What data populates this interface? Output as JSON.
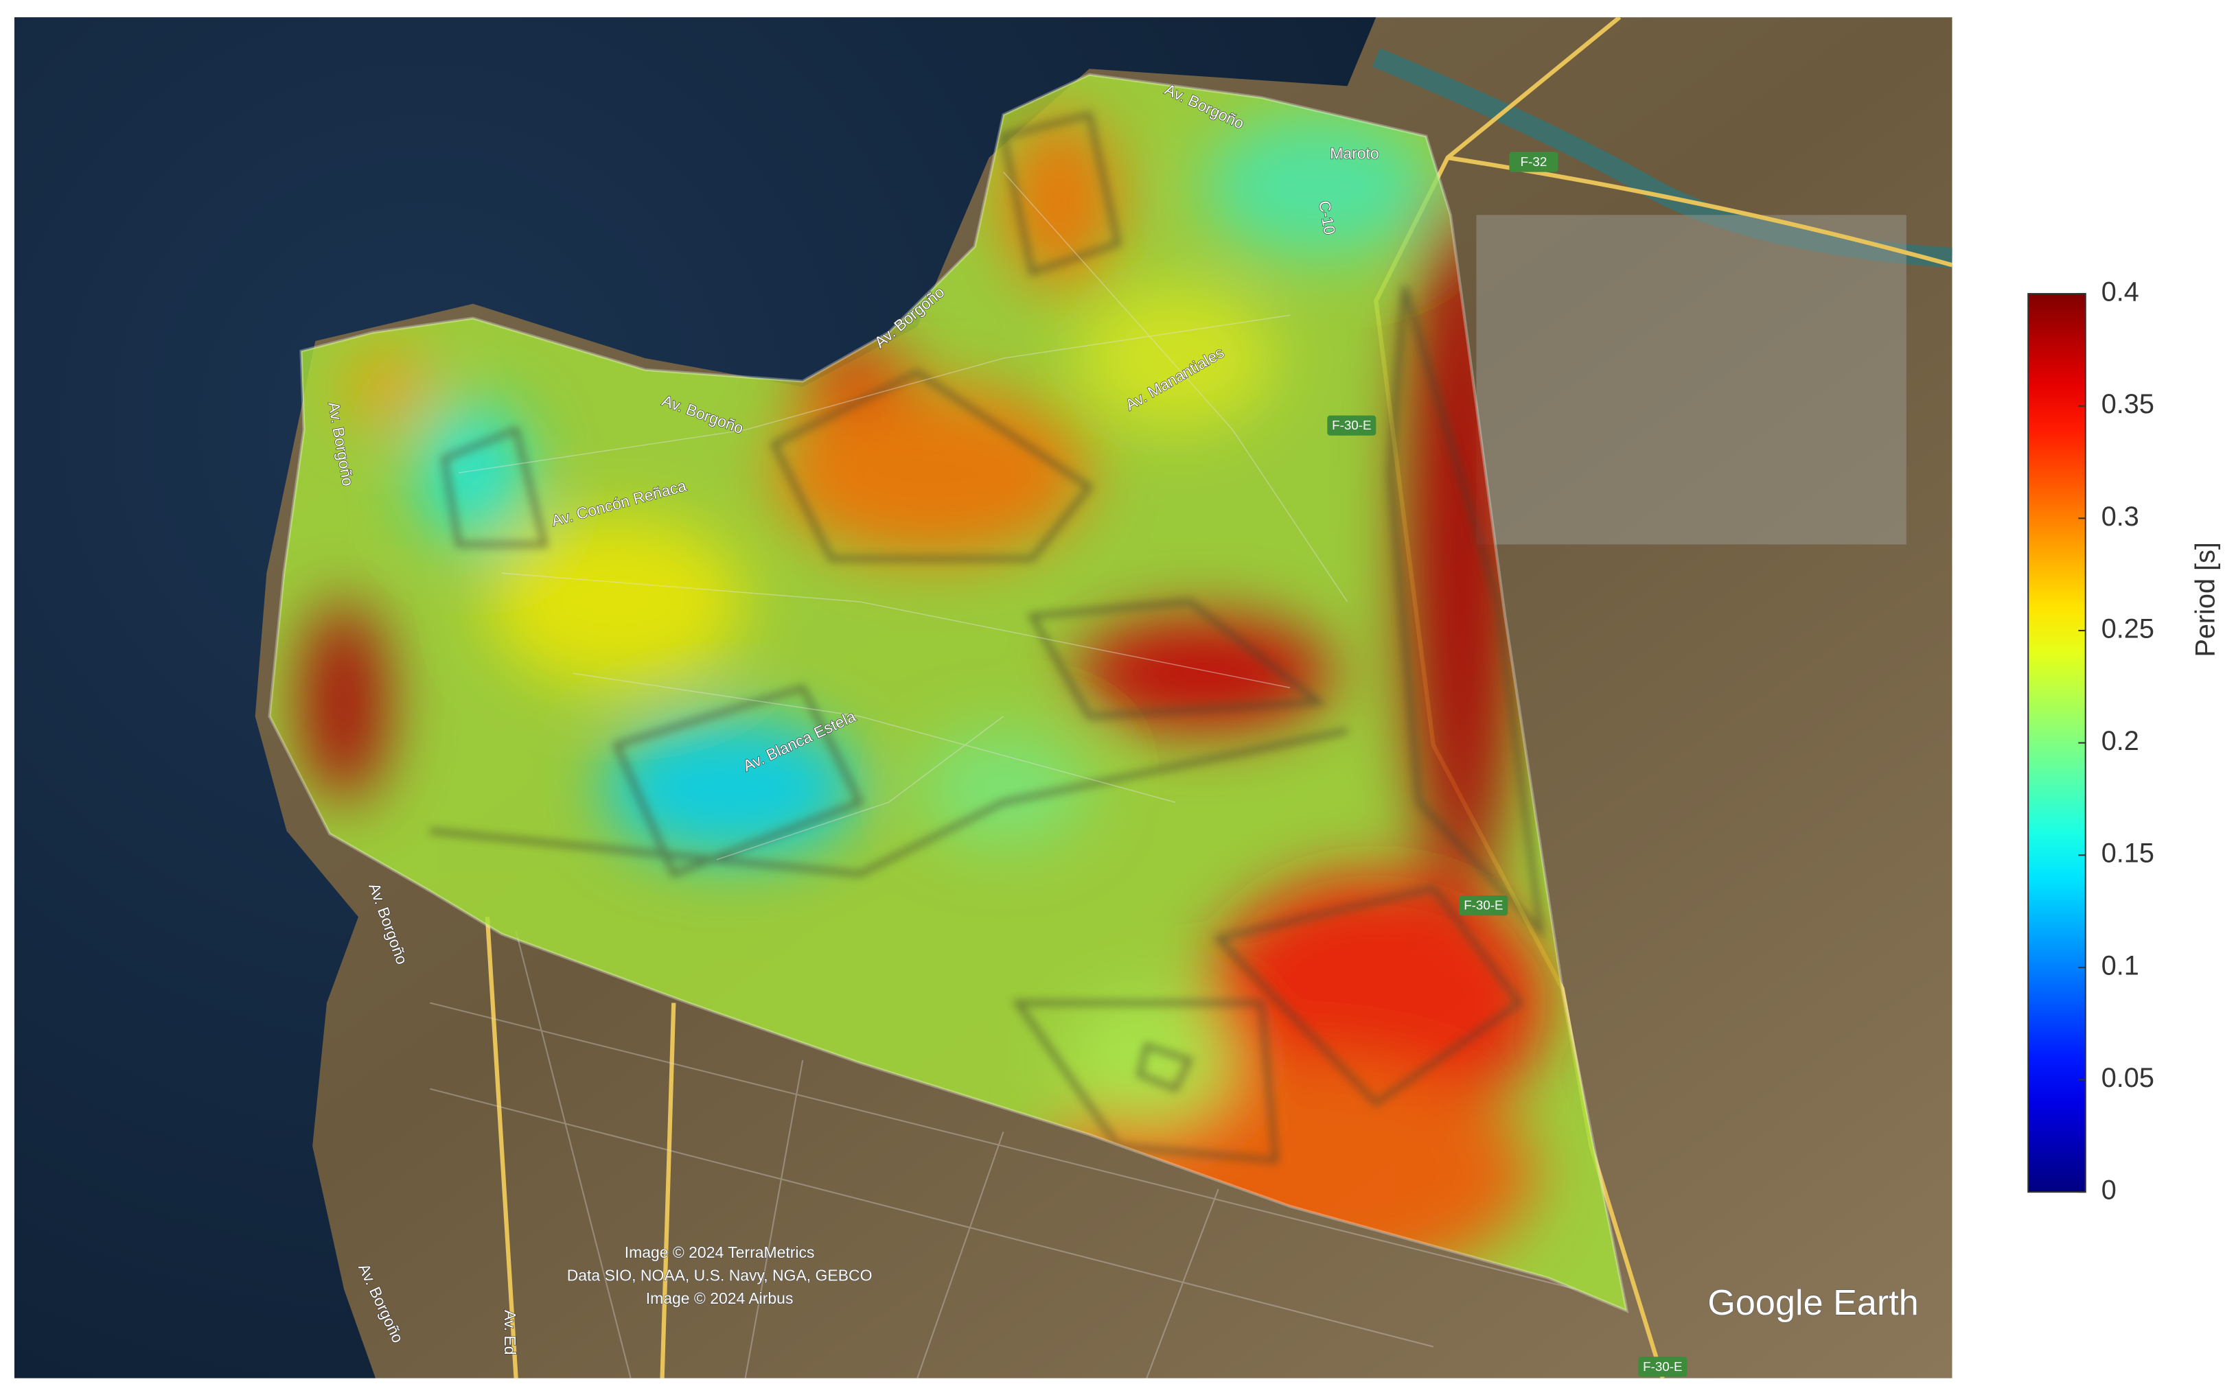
{
  "map": {
    "street_labels": [
      "Av. Borgoño",
      "Maroto",
      "C-10",
      "Av. Borgoño",
      "Av. Borgoño",
      "Av. Manantiales",
      "Av. Borgoño",
      "Av. Concón Reñaca",
      "Av. Blanca Estela",
      "Av. Borgoño",
      "Av. Borgoño",
      "Av. Ed"
    ],
    "road_shields": [
      "F-32",
      "F-30-E",
      "F-30-E",
      "F-30-E"
    ],
    "attribution": [
      "Image © 2024 TerraMetrics",
      "Data SIO, NOAA, U.S. Navy, NGA, GEBCO",
      "Image © 2024 Airbus"
    ],
    "logo": "Google Earth"
  },
  "colorbar": {
    "label": "Period [s]",
    "colormap": "jet",
    "lim": [
      0,
      0.4
    ],
    "ticks": [
      0,
      0.05,
      0.1,
      0.15,
      0.2,
      0.25,
      0.3,
      0.35,
      0.4
    ]
  }
}
